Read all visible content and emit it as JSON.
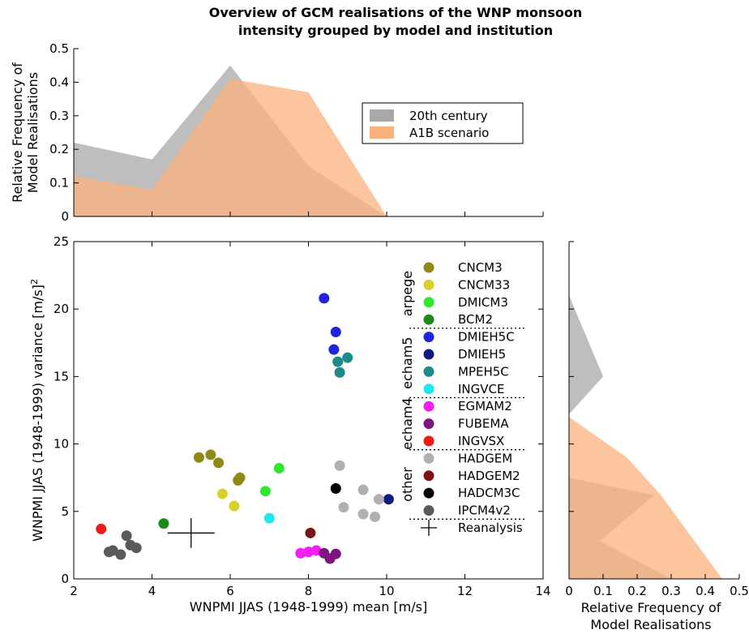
{
  "chart_data": [
    {
      "type": "scatter",
      "panel": "main",
      "title": "Overview of GCM realisations of the WNP monsoon intensity grouped by model and institution",
      "xlabel": "WNPMI JJAS (1948-1999) mean [m/s]",
      "ylabel_main": "WNPMI  JJAS (1948-1999) variance [m/s]",
      "ylabel_sup": "2",
      "xlim": [
        2,
        14
      ],
      "ylim": [
        0,
        25
      ],
      "xticks": [
        "2",
        "4",
        "6",
        "8",
        "10",
        "12",
        "14"
      ],
      "yticks": [
        "0",
        "5",
        "10",
        "15",
        "20",
        "25"
      ],
      "grid": false,
      "legend_position": "right",
      "groups": [
        {
          "label": "arpege",
          "after_series": 3
        },
        {
          "label": "echam5",
          "after_series": 7
        },
        {
          "label": "echam4",
          "after_series": 10
        },
        {
          "label": "other",
          "after_series": 14
        }
      ],
      "series": [
        {
          "name": "CNCM3",
          "color": "#8f8a14",
          "points": [
            [
              5.2,
              9.0
            ],
            [
              5.5,
              9.2
            ],
            [
              5.7,
              8.6
            ],
            [
              6.2,
              7.3
            ],
            [
              6.25,
              7.5
            ]
          ]
        },
        {
          "name": "CNCM33",
          "color": "#d9d12a",
          "points": [
            [
              5.8,
              6.3
            ],
            [
              6.1,
              5.4
            ]
          ]
        },
        {
          "name": "DMICM3",
          "color": "#2ee82e",
          "points": [
            [
              6.9,
              6.5
            ],
            [
              7.25,
              8.2
            ]
          ]
        },
        {
          "name": "BCM2",
          "color": "#1b8a1b",
          "points": [
            [
              4.3,
              4.1
            ]
          ]
        },
        {
          "name": "DMIEH5C",
          "color": "#1f24e0",
          "points": [
            [
              8.4,
              20.8
            ],
            [
              8.7,
              18.3
            ],
            [
              8.65,
              17.0
            ]
          ]
        },
        {
          "name": "DMIEH5",
          "color": "#101a80",
          "points": [
            [
              10.05,
              5.9
            ]
          ]
        },
        {
          "name": "MPEH5C",
          "color": "#1e8a8a",
          "points": [
            [
              9.0,
              16.4
            ],
            [
              8.75,
              16.1
            ],
            [
              8.8,
              15.3
            ]
          ]
        },
        {
          "name": "INGVCE",
          "color": "#1ee8ee",
          "points": [
            [
              7.0,
              4.5
            ]
          ]
        },
        {
          "name": "EGMAM2",
          "color": "#f21ef2",
          "points": [
            [
              7.8,
              1.9
            ],
            [
              8.0,
              2.0
            ],
            [
              8.2,
              2.1
            ]
          ]
        },
        {
          "name": "FUBEMA",
          "color": "#7e157e",
          "points": [
            [
              8.4,
              1.9
            ],
            [
              8.55,
              1.5
            ],
            [
              8.7,
              1.85
            ]
          ]
        },
        {
          "name": "INGVSX",
          "color": "#ee1a1a",
          "points": [
            [
              2.7,
              3.7
            ]
          ]
        },
        {
          "name": "HADGEM",
          "color": "#b0b0b0",
          "points": [
            [
              8.8,
              8.4
            ],
            [
              8.9,
              5.3
            ],
            [
              9.4,
              6.6
            ],
            [
              9.4,
              4.8
            ],
            [
              9.7,
              4.6
            ],
            [
              9.8,
              5.9
            ]
          ]
        },
        {
          "name": "HADGEM2",
          "color": "#7e1212",
          "points": [
            [
              8.05,
              3.4
            ]
          ]
        },
        {
          "name": "HADCM3C",
          "color": "#000000",
          "points": [
            [
              8.7,
              6.7
            ]
          ]
        },
        {
          "name": "IPCM4v2",
          "color": "#5a5a5a",
          "points": [
            [
              2.9,
              2.0
            ],
            [
              3.0,
              2.1
            ],
            [
              3.2,
              1.8
            ],
            [
              3.35,
              3.2
            ],
            [
              3.45,
              2.5
            ],
            [
              3.6,
              2.3
            ]
          ]
        },
        {
          "name": "Reanalysis",
          "marker": "cross",
          "color": "#000000",
          "points": [
            [
              5.0,
              3.4
            ]
          ],
          "x_err": [
            4.4,
            5.6
          ],
          "y_err": [
            2.3,
            4.5
          ]
        }
      ]
    },
    {
      "type": "area",
      "panel": "top",
      "ylabel": "Relative Frequency of Model Realisations",
      "xlim": [
        2,
        14
      ],
      "ylim": [
        0,
        0.5
      ],
      "yticks": [
        "0",
        "0.1",
        "0.2",
        "0.3",
        "0.4",
        "0.5"
      ],
      "legend_position": "top-right",
      "series": [
        {
          "name": "20th century",
          "color": "#a8a8a8",
          "x": [
            2,
            4,
            6,
            8,
            10
          ],
          "values": [
            0.22,
            0.17,
            0.45,
            0.15,
            0.0
          ]
        },
        {
          "name": "A1B scenario",
          "color": "#fbb27e",
          "x": [
            2,
            4,
            6,
            8,
            10
          ],
          "values": [
            0.12,
            0.08,
            0.41,
            0.37,
            0.0
          ]
        }
      ]
    },
    {
      "type": "area",
      "panel": "right",
      "xlabel": "Relative Frequency of Model Realisations",
      "xlim": [
        0,
        0.5
      ],
      "ylim": [
        0,
        25
      ],
      "xticks": [
        "0",
        "0.1",
        "0.2",
        "0.3",
        "0.4",
        "0.5"
      ],
      "series": [
        {
          "name": "20th century",
          "color": "#a8a8a8",
          "y": [
            0,
            2.8,
            6.2,
            7.5,
            12.2,
            15.0,
            21.0
          ],
          "values": [
            0.3,
            0.09,
            0.25,
            0.0,
            0.0,
            0.1,
            0.0
          ]
        },
        {
          "name": "A1B scenario",
          "color": "#fbb27e",
          "y": [
            0,
            6.2,
            9.0,
            12.0
          ],
          "values": [
            0.45,
            0.27,
            0.17,
            0.0
          ]
        }
      ]
    }
  ]
}
